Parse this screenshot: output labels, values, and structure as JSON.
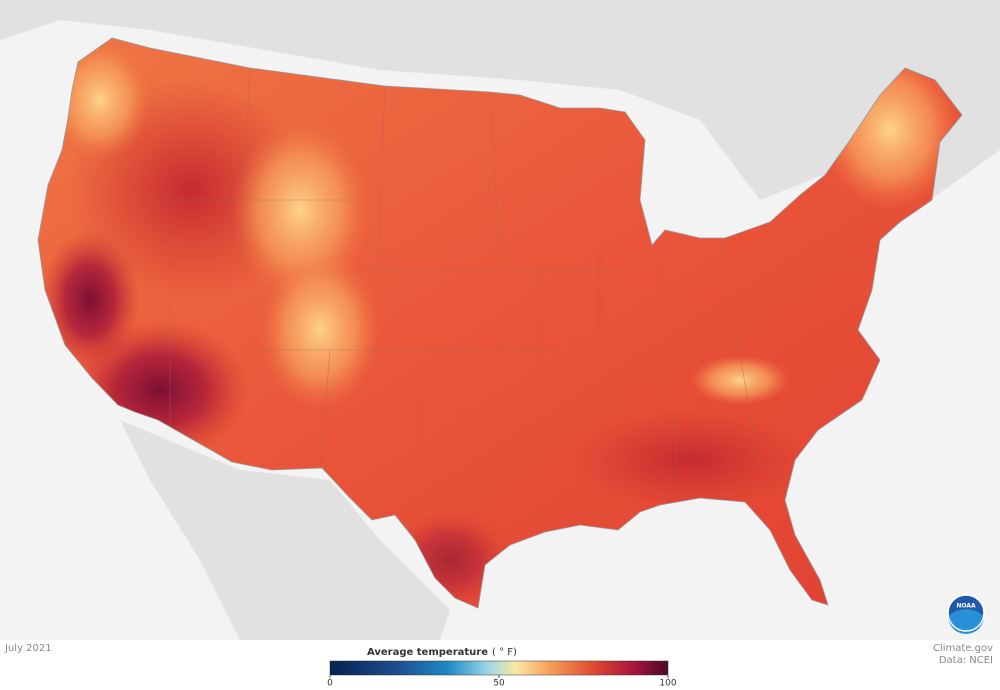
{
  "map": {
    "date": "July 2021",
    "credit": "Climate.gov",
    "source": "Data: NCEI",
    "logo_text": "NOAA"
  },
  "colorbar": {
    "title": "Average temperature",
    "unit": "( ° F)",
    "lim": [
      0,
      100
    ],
    "ticks": [
      0,
      50,
      100
    ]
  }
}
